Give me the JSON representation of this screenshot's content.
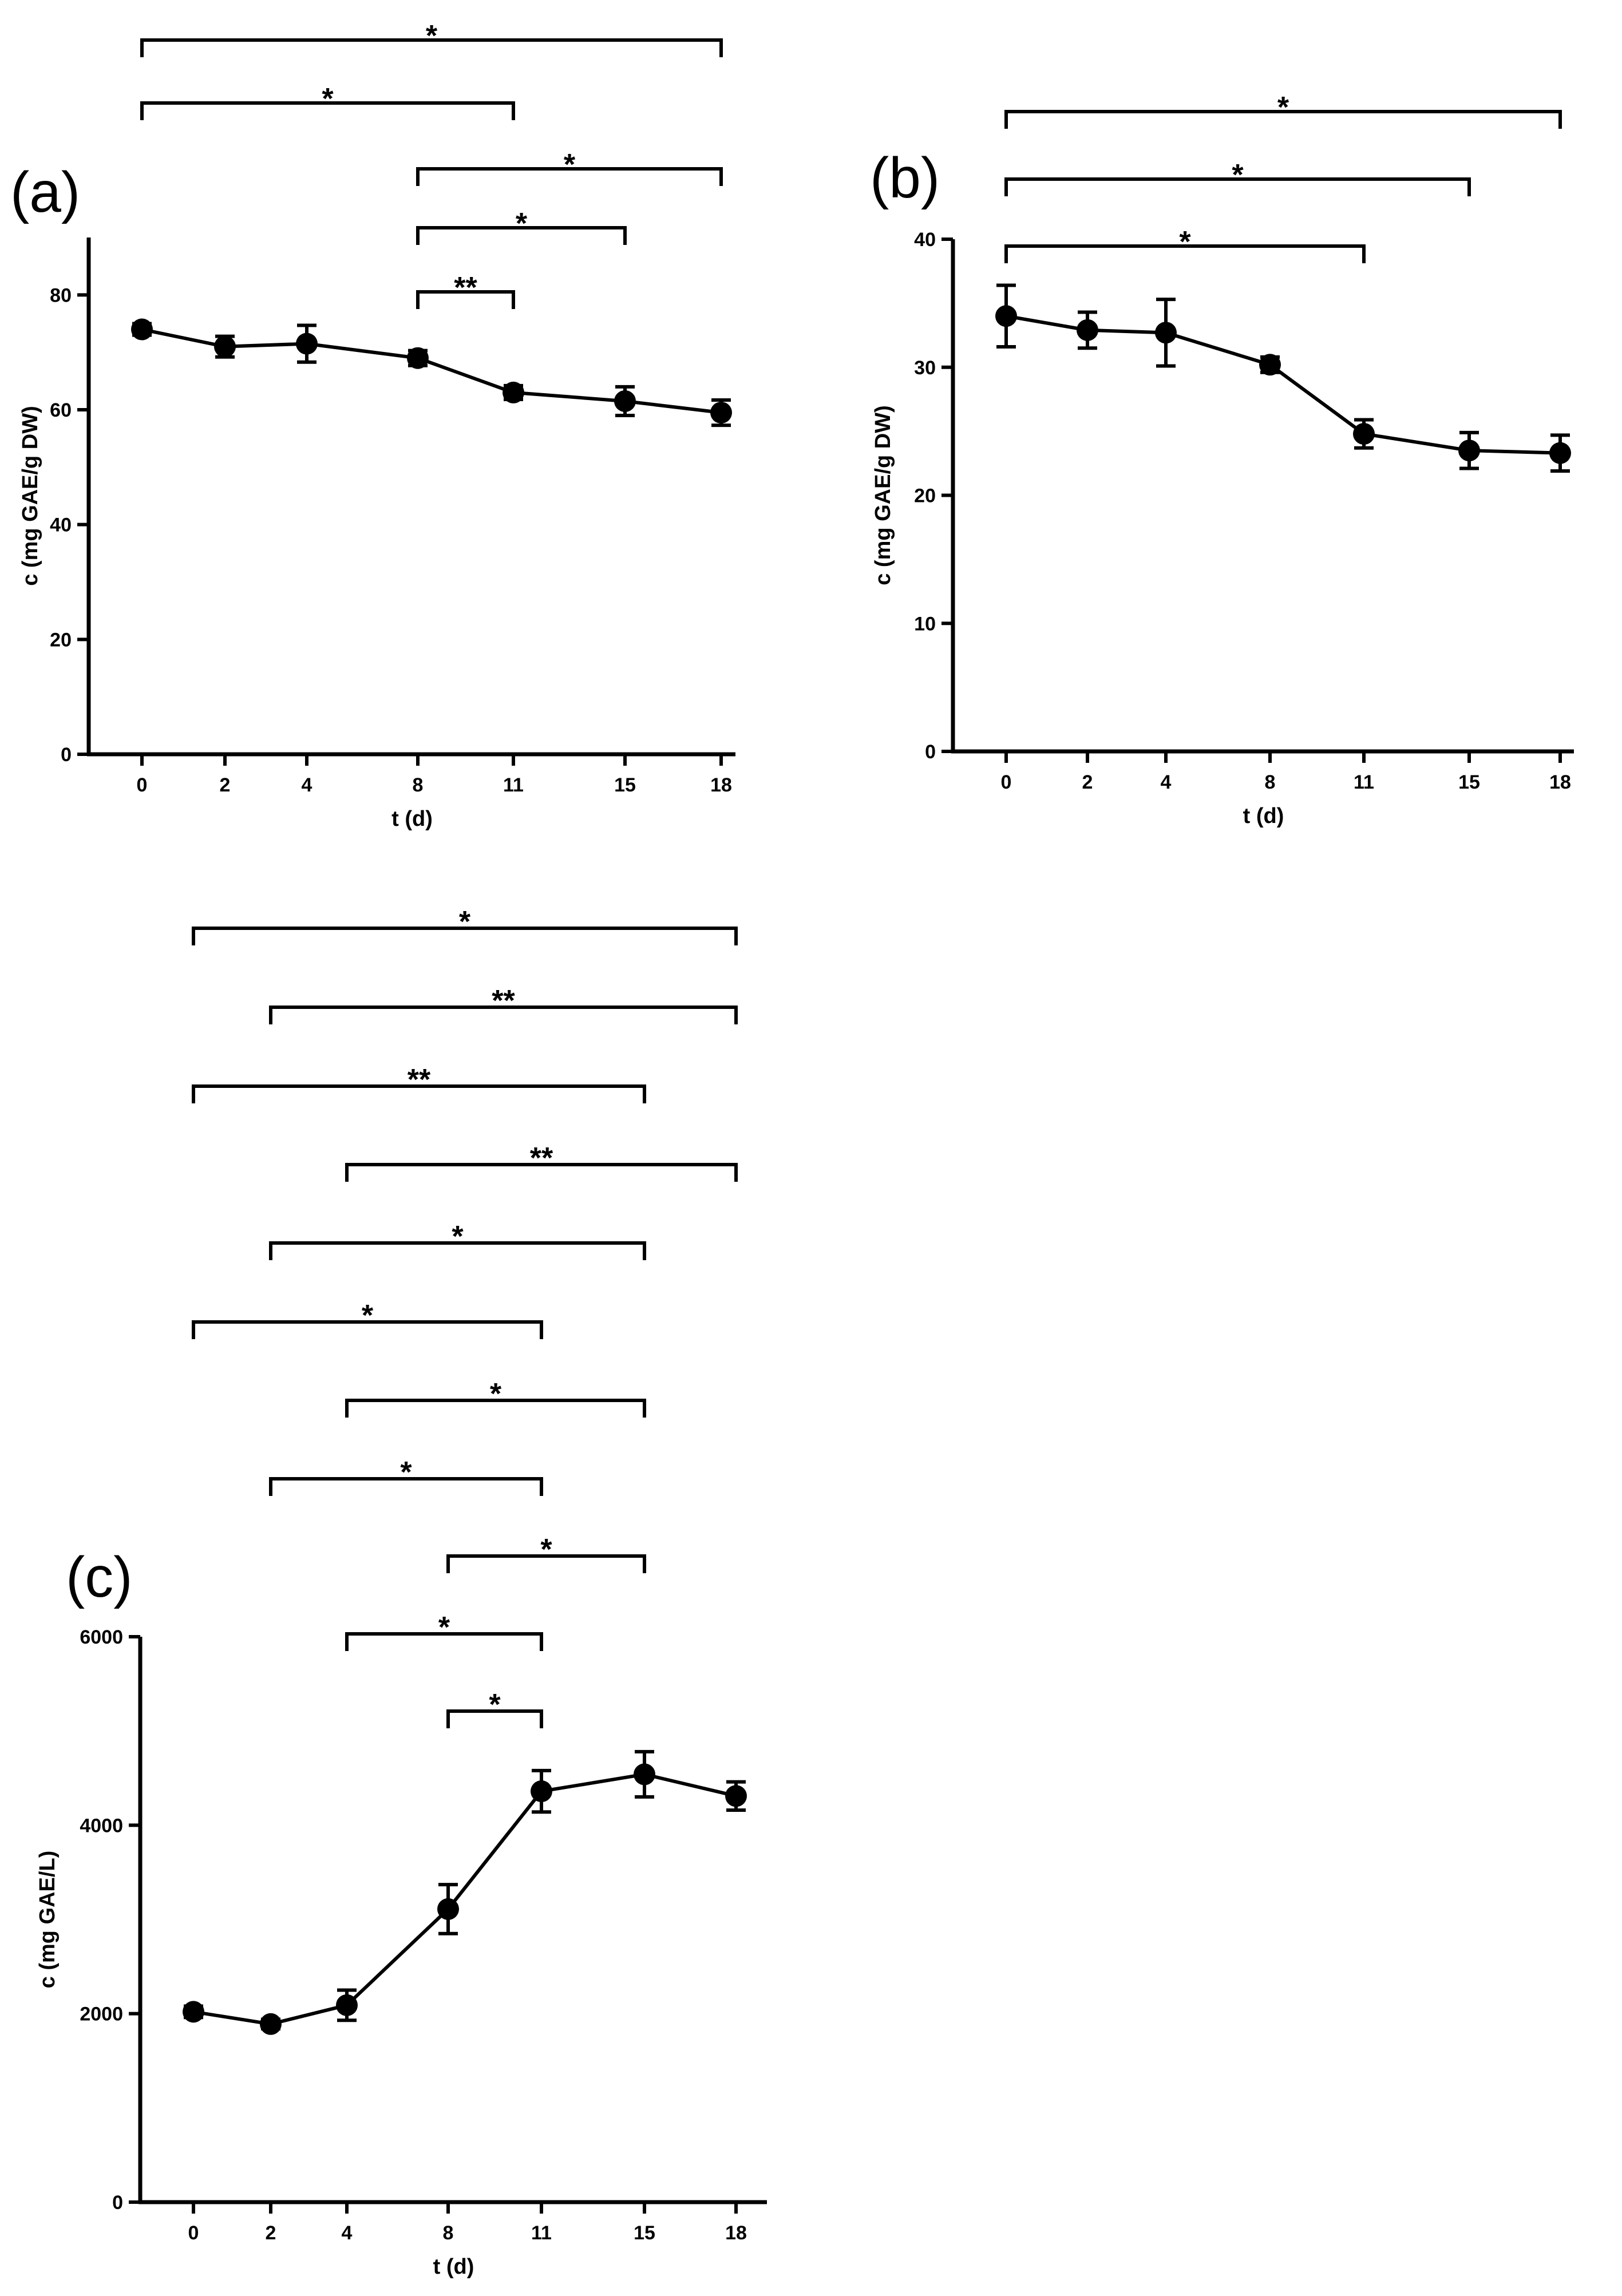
{
  "chart_data": [
    {
      "panel": "(a)",
      "type": "line",
      "categories": [
        "0",
        "2",
        "4",
        "8",
        "11",
        "15",
        "18"
      ],
      "values": [
        74,
        71,
        71.5,
        69,
        63,
        61.5,
        59.5
      ],
      "errors": [
        1,
        1.8,
        3.2,
        1.3,
        1.2,
        2.5,
        2.2
      ],
      "xlabel": "t (d)",
      "ylabel": "c (mg GAE/g DW)",
      "ylim": [
        0,
        90
      ],
      "yticks": [
        0,
        20,
        40,
        60,
        80
      ],
      "comparisons": [
        {
          "from": "0",
          "to": "18",
          "label": "*"
        },
        {
          "from": "0",
          "to": "11",
          "label": "*"
        },
        {
          "from": "8",
          "to": "18",
          "label": "*"
        },
        {
          "from": "8",
          "to": "15",
          "label": "*"
        },
        {
          "from": "8",
          "to": "11",
          "label": "**"
        }
      ]
    },
    {
      "panel": "(b)",
      "type": "line",
      "categories": [
        "0",
        "2",
        "4",
        "8",
        "11",
        "15",
        "18"
      ],
      "values": [
        34,
        32.9,
        32.7,
        30.2,
        24.8,
        23.5,
        23.3
      ],
      "errors": [
        2.4,
        1.4,
        2.6,
        0.6,
        1.1,
        1.4,
        1.4
      ],
      "xlabel": "t (d)",
      "ylabel": "c (mg GAE/g DW)",
      "ylim": [
        0,
        40
      ],
      "yticks": [
        0,
        10,
        20,
        30,
        40
      ],
      "comparisons": [
        {
          "from": "0",
          "to": "18",
          "label": "*"
        },
        {
          "from": "0",
          "to": "15",
          "label": "*"
        },
        {
          "from": "0",
          "to": "11",
          "label": "*"
        }
      ]
    },
    {
      "panel": "(c)",
      "type": "line",
      "categories": [
        "0",
        "2",
        "4",
        "8",
        "11",
        "15",
        "18"
      ],
      "values": [
        2020,
        1890,
        2090,
        3110,
        4360,
        4540,
        4310
      ],
      "errors": [
        60,
        50,
        160,
        260,
        220,
        240,
        150
      ],
      "xlabel": "t (d)",
      "ylabel": "c (mg GAE/L)",
      "ylim": [
        0,
        6000
      ],
      "yticks": [
        0,
        2000,
        4000,
        6000
      ],
      "comparisons": [
        {
          "from": "0",
          "to": "18",
          "label": "*"
        },
        {
          "from": "2",
          "to": "18",
          "label": "**"
        },
        {
          "from": "0",
          "to": "15",
          "label": "**"
        },
        {
          "from": "4",
          "to": "18",
          "label": "**"
        },
        {
          "from": "2",
          "to": "15",
          "label": "*"
        },
        {
          "from": "0",
          "to": "11",
          "label": "*"
        },
        {
          "from": "4",
          "to": "15",
          "label": "*"
        },
        {
          "from": "2",
          "to": "11",
          "label": "*"
        },
        {
          "from": "8",
          "to": "15",
          "label": "*"
        },
        {
          "from": "4",
          "to": "11",
          "label": "*"
        },
        {
          "from": "8",
          "to": "11",
          "label": "*"
        }
      ]
    }
  ]
}
